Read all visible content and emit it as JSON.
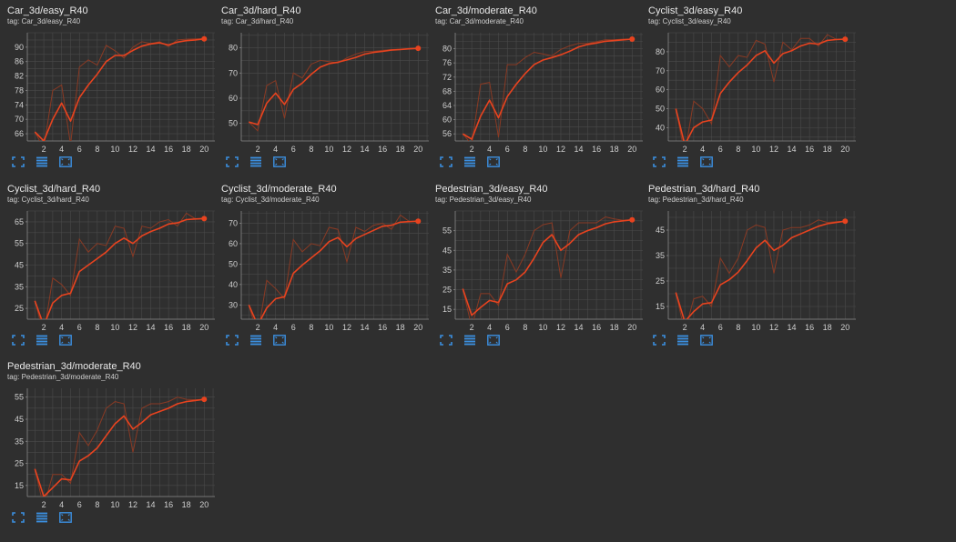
{
  "colors": {
    "background": "#2f2f2f",
    "grid": "#4a4a4a",
    "axis": "#888888",
    "line": "#e8431f",
    "line_raw": "#8a3a24",
    "icon": "#3b8fe0",
    "text": "#cfcfcf"
  },
  "toolbar_icons": [
    "fit-domain-icon",
    "toggle-log-scale-icon",
    "expand-chart-icon"
  ],
  "charts": [
    {
      "title": "Car_3d/easy_R40",
      "tag": "tag: Car_3d/easy_R40",
      "chart_data": {
        "type": "line",
        "x": [
          1,
          2,
          3,
          4,
          5,
          6,
          7,
          8,
          9,
          10,
          11,
          12,
          13,
          14,
          15,
          16,
          17,
          18,
          19,
          20
        ],
        "ylim": [
          64,
          94
        ],
        "yticks": [
          "66",
          "70",
          "74",
          "78",
          "82",
          "86",
          "90"
        ],
        "xticks": [
          "2",
          "4",
          "6",
          "8",
          "10",
          "12",
          "14",
          "16",
          "18",
          "20"
        ],
        "series": [
          {
            "kind": "smoothed",
            "values": [
              66.5,
              64,
              70,
              74.5,
              69.5,
              76,
              79.5,
              82.5,
              86,
              87.7,
              87.7,
              89.1,
              90.3,
              90.9,
              91.2,
              90.6,
              91.4,
              91.8,
              92.0,
              92.3
            ]
          },
          {
            "kind": "raw",
            "values": [
              66.5,
              62,
              78,
              79.5,
              63,
              84.5,
              86.5,
              85,
              90.5,
              89,
              87,
              90,
              91.5,
              91,
              91.5,
              90.2,
              92,
              92.2,
              92.3,
              92.3
            ]
          }
        ]
      }
    },
    {
      "title": "Car_3d/hard_R40",
      "tag": "tag: Car_3d/hard_R40",
      "chart_data": {
        "type": "line",
        "x": [
          1,
          2,
          3,
          4,
          5,
          6,
          7,
          8,
          9,
          10,
          11,
          12,
          13,
          14,
          15,
          16,
          17,
          18,
          19,
          20
        ],
        "ylim": [
          43,
          86
        ],
        "yticks": [
          "50",
          "60",
          "70",
          "80"
        ],
        "xticks": [
          "2",
          "4",
          "6",
          "8",
          "10",
          "12",
          "14",
          "16",
          "18",
          "20"
        ],
        "series": [
          {
            "kind": "smoothed",
            "values": [
              50.5,
              49.5,
              58,
              62,
              57.5,
              63.5,
              66,
              69.5,
              72.3,
              73.7,
              74.3,
              75.2,
              76.2,
              77.5,
              78.2,
              78.6,
              79.1,
              79.3,
              79.6,
              79.8
            ]
          },
          {
            "kind": "raw",
            "values": [
              50.5,
              47,
              65,
              67,
              52,
              70,
              68,
              73.5,
              75,
              74.5,
              74,
              76,
              77.5,
              78.5,
              78.6,
              79,
              79.3,
              79.5,
              79.8,
              79.8
            ]
          }
        ]
      }
    },
    {
      "title": "Car_3d/moderate_R40",
      "tag": "tag: Car_3d/moderate_R40",
      "chart_data": {
        "type": "line",
        "x": [
          1,
          2,
          3,
          4,
          5,
          6,
          7,
          8,
          9,
          10,
          11,
          12,
          13,
          14,
          15,
          16,
          17,
          18,
          19,
          20
        ],
        "ylim": [
          54,
          84.5
        ],
        "yticks": [
          "56",
          "60",
          "64",
          "68",
          "72",
          "76",
          "80"
        ],
        "xticks": [
          "2",
          "4",
          "6",
          "8",
          "10",
          "12",
          "14",
          "16",
          "18",
          "20"
        ],
        "series": [
          {
            "kind": "smoothed",
            "values": [
              56,
              54.5,
              61,
              65.5,
              60.5,
              66.5,
              70,
              73,
              75.5,
              76.8,
              77.5,
              78.3,
              79.3,
              80.5,
              81.2,
              81.6,
              82.1,
              82.3,
              82.5,
              82.7
            ]
          },
          {
            "kind": "raw",
            "values": [
              56,
              53,
              70,
              70.5,
              55,
              75.5,
              75.5,
              77.5,
              79,
              78.5,
              78,
              79.8,
              80.8,
              81.5,
              81.5,
              82,
              82.5,
              82.5,
              82.7,
              82.7
            ]
          }
        ]
      }
    },
    {
      "title": "Cyclist_3d/easy_R40",
      "tag": "tag: Cyclist_3d/easy_R40",
      "chart_data": {
        "type": "line",
        "x": [
          1,
          2,
          3,
          4,
          5,
          6,
          7,
          8,
          9,
          10,
          11,
          12,
          13,
          14,
          15,
          16,
          17,
          18,
          19,
          20
        ],
        "ylim": [
          33,
          90
        ],
        "yticks": [
          "40",
          "50",
          "60",
          "70",
          "80"
        ],
        "xticks": [
          "2",
          "4",
          "6",
          "8",
          "10",
          "12",
          "14",
          "16",
          "18",
          "20"
        ],
        "series": [
          {
            "kind": "smoothed",
            "values": [
              50,
              31,
              40,
              43,
              44,
              58,
              64,
              69,
              73,
              78,
              80.5,
              74,
              79,
              80.5,
              83,
              84.5,
              84,
              86,
              86.4,
              86.6
            ]
          },
          {
            "kind": "raw",
            "values": [
              50,
              26,
              54,
              50,
              42,
              78,
              72,
              78,
              77,
              86,
              84,
              64,
              85,
              81,
              87,
              87,
              83,
              89,
              86.5,
              86.6
            ]
          }
        ]
      }
    },
    {
      "title": "Cyclist_3d/hard_R40",
      "tag": "tag: Cyclist_3d/hard_R40",
      "chart_data": {
        "type": "line",
        "x": [
          1,
          2,
          3,
          4,
          5,
          6,
          7,
          8,
          9,
          10,
          11,
          12,
          13,
          14,
          15,
          16,
          17,
          18,
          19,
          20
        ],
        "ylim": [
          20,
          70
        ],
        "yticks": [
          "25",
          "35",
          "45",
          "55",
          "65"
        ],
        "xticks": [
          "2",
          "4",
          "6",
          "8",
          "10",
          "12",
          "14",
          "16",
          "18",
          "20"
        ],
        "series": [
          {
            "kind": "smoothed",
            "values": [
              28.5,
              17,
              27.5,
              31,
              32,
              42,
              45,
              48,
              51,
              55,
              57.5,
              55,
              58.5,
              60.5,
              62,
              64,
              64.5,
              66,
              66.3,
              66.5
            ]
          },
          {
            "kind": "raw",
            "values": [
              28.5,
              13,
              39,
              36,
              31,
              57,
              51,
              55,
              54,
              63,
              62,
              49,
              63,
              62,
              65,
              66,
              63,
              69,
              66.4,
              66.5
            ]
          }
        ]
      }
    },
    {
      "title": "Cyclist_3d/moderate_R40",
      "tag": "tag: Cyclist_3d/moderate_R40",
      "chart_data": {
        "type": "line",
        "x": [
          1,
          2,
          3,
          4,
          5,
          6,
          7,
          8,
          9,
          10,
          11,
          12,
          13,
          14,
          15,
          16,
          17,
          18,
          19,
          20
        ],
        "ylim": [
          23,
          76
        ],
        "yticks": [
          "30",
          "40",
          "50",
          "60",
          "70"
        ],
        "xticks": [
          "2",
          "4",
          "6",
          "8",
          "10",
          "12",
          "14",
          "16",
          "18",
          "20"
        ],
        "series": [
          {
            "kind": "smoothed",
            "values": [
              30,
              20,
              28.5,
              33,
              34,
              45.5,
              49.5,
              53,
              56.5,
              61,
              63,
              58.5,
              62.5,
              64.5,
              66.5,
              68.5,
              69,
              70.5,
              70.8,
              71
            ]
          },
          {
            "kind": "raw",
            "values": [
              30,
              15,
              42,
              38,
              33,
              62,
              56,
              60,
              59,
              68,
              67,
              51,
              68,
              66,
              69,
              70,
              67,
              74,
              70.9,
              71
            ]
          }
        ]
      }
    },
    {
      "title": "Pedestrian_3d/easy_R40",
      "tag": "tag: Pedestrian_3d/easy_R40",
      "chart_data": {
        "type": "line",
        "x": [
          1,
          2,
          3,
          4,
          5,
          6,
          7,
          8,
          9,
          10,
          11,
          12,
          13,
          14,
          15,
          16,
          17,
          18,
          19,
          20
        ],
        "ylim": [
          10,
          65
        ],
        "yticks": [
          "15",
          "25",
          "35",
          "45",
          "55"
        ],
        "xticks": [
          "2",
          "4",
          "6",
          "8",
          "10",
          "12",
          "14",
          "16",
          "18",
          "20"
        ],
        "series": [
          {
            "kind": "smoothed",
            "values": [
              25.5,
              12,
              16,
              19.5,
              18.5,
              28,
              30,
              34,
              41,
              49,
              53,
              45,
              48.5,
              53,
              55,
              56.5,
              58.5,
              59.5,
              60,
              60.5
            ]
          },
          {
            "kind": "raw",
            "values": [
              25.5,
              6,
              23,
              23,
              17,
              43,
              34,
              43,
              55,
              58,
              59,
              31,
              55,
              59,
              59,
              59,
              62,
              61,
              60.3,
              60.5
            ]
          }
        ]
      }
    },
    {
      "title": "Pedestrian_3d/hard_R40",
      "tag": "tag: Pedestrian_3d/hard_R40",
      "chart_data": {
        "type": "line",
        "x": [
          1,
          2,
          3,
          4,
          5,
          6,
          7,
          8,
          9,
          10,
          11,
          12,
          13,
          14,
          15,
          16,
          17,
          18,
          19,
          20
        ],
        "ylim": [
          10,
          52.5
        ],
        "yticks": [
          "15",
          "25",
          "35",
          "45"
        ],
        "xticks": [
          "2",
          "4",
          "6",
          "8",
          "10",
          "12",
          "14",
          "16",
          "18",
          "20"
        ],
        "series": [
          {
            "kind": "smoothed",
            "values": [
              20.5,
              9,
              13,
              16,
              16.5,
              23.5,
              25.5,
              28.5,
              33,
              38,
              41,
              37,
              39,
              42,
              43.5,
              45,
              46.5,
              47.5,
              48,
              48.5
            ]
          },
          {
            "kind": "raw",
            "values": [
              20.5,
              5,
              18,
              19,
              15,
              34,
              28,
              34,
              45,
              47,
              46,
              28,
              45,
              46,
              46,
              47,
              49,
              48,
              48.3,
              48.5
            ]
          }
        ]
      }
    },
    {
      "title": "Pedestrian_3d/moderate_R40",
      "tag": "tag: Pedestrian_3d/moderate_R40",
      "chart_data": {
        "type": "line",
        "x": [
          1,
          2,
          3,
          4,
          5,
          6,
          7,
          8,
          9,
          10,
          11,
          12,
          13,
          14,
          15,
          16,
          17,
          18,
          19,
          20
        ],
        "ylim": [
          10,
          59
        ],
        "yticks": [
          "15",
          "25",
          "35",
          "45",
          "55"
        ],
        "xticks": [
          "2",
          "4",
          "6",
          "8",
          "10",
          "12",
          "14",
          "16",
          "18",
          "20"
        ],
        "series": [
          {
            "kind": "smoothed",
            "values": [
              22.5,
              10,
              14,
              18,
              17.5,
              26,
              28.5,
              32,
              37.5,
              43,
              46.5,
              40.5,
              43.5,
              47,
              48.5,
              50,
              52,
              53,
              53.5,
              54
            ]
          },
          {
            "kind": "raw",
            "values": [
              22.5,
              5,
              20,
              20,
              16,
              39,
              33,
              40,
              50,
              53,
              52,
              30,
              50,
              52,
              52,
              53,
              55,
              54,
              53.8,
              54
            ]
          }
        ]
      }
    }
  ]
}
